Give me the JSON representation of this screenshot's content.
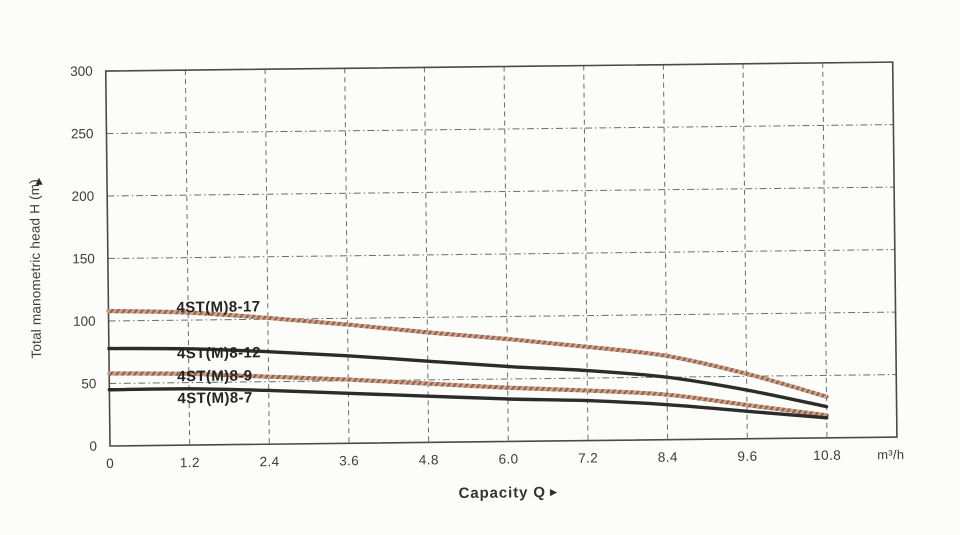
{
  "colors": {
    "paper": "#fcfcfa",
    "plot_border": "#4a4a4a",
    "grid": "#6b6b6b",
    "text": "#3b3b3b",
    "black_curve": "#2c2c2c",
    "brown_curve_light": "#cba28b",
    "brown_curve_dark": "#94614a"
  },
  "icons": {
    "x_axis_arrow": "►",
    "y_axis_arrow": "▲"
  },
  "chart_data": {
    "type": "line",
    "title": "",
    "xlabel": "Capacity Q",
    "x_unit": "m³/h",
    "ylabel": "Total manometric head H (m)",
    "xlim": [
      0,
      11.85
    ],
    "ylim": [
      0,
      300
    ],
    "grid": "dashed both axes",
    "legend_position": "labels beside curves",
    "x": [
      0,
      1.2,
      2.4,
      3.6,
      4.8,
      6.0,
      7.2,
      8.4,
      9.6,
      10.8
    ],
    "x_tick_labels": [
      "0",
      "1.2",
      "2.4",
      "3.6",
      "4.8",
      "6.0",
      "7.2",
      "8.4",
      "9.6",
      "10.8"
    ],
    "y_ticks": [
      0,
      50,
      100,
      150,
      200,
      250,
      300
    ],
    "series": [
      {
        "name": "4ST(M)8-17",
        "style": "textured-brown",
        "values": [
          108,
          106,
          101,
          95,
          88,
          82,
          75,
          67,
          52,
          33
        ]
      },
      {
        "name": "4ST(M)8-12",
        "style": "solid-black",
        "values": [
          78,
          77,
          74,
          70,
          65,
          60,
          56,
          50,
          39,
          25
        ]
      },
      {
        "name": "4ST(M)8-9",
        "style": "textured-brown",
        "values": [
          58,
          57,
          54,
          51,
          47,
          43,
          40,
          36,
          27,
          18
        ]
      },
      {
        "name": "4ST(M)8-7",
        "style": "solid-black",
        "values": [
          45,
          45,
          43,
          40,
          37,
          34,
          32,
          28,
          22,
          16
        ]
      }
    ]
  }
}
